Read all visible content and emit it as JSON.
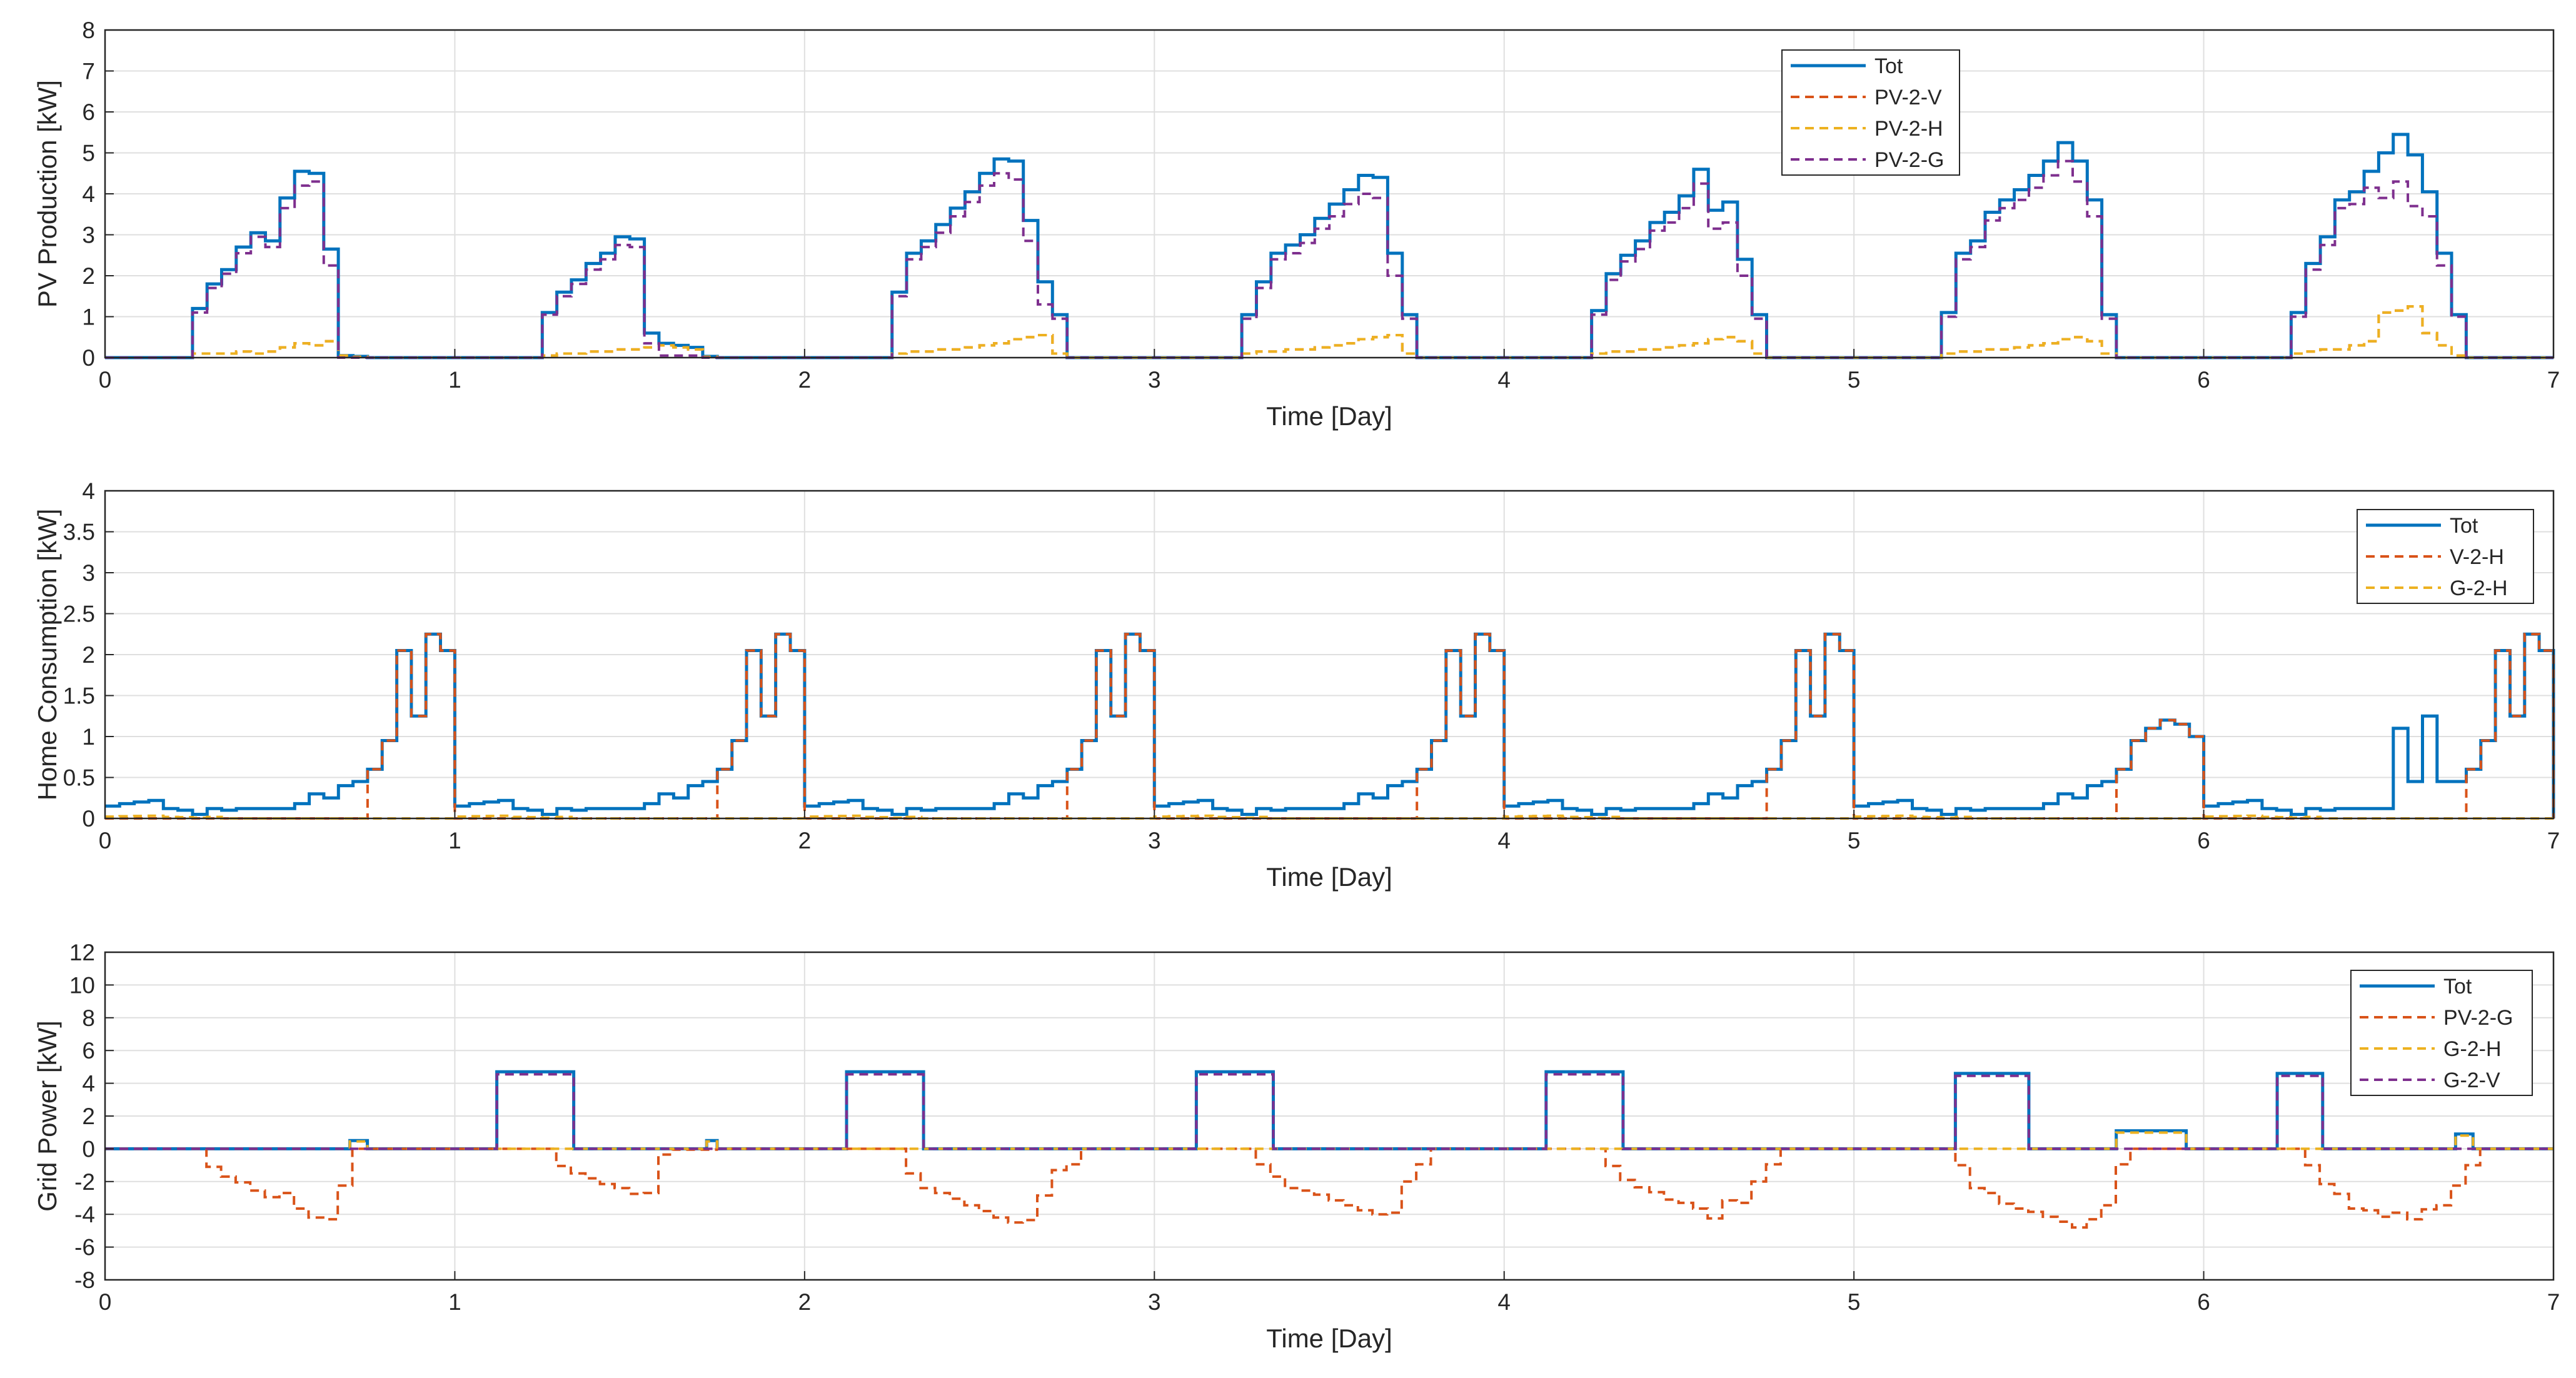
{
  "colors": {
    "tot": "#0072BD",
    "orange": "#D95319",
    "yellow": "#EDB120",
    "purple": "#7E2F8E",
    "grid": "#DFDFDF",
    "axis": "#262626"
  },
  "chart_data": [
    {
      "type": "line",
      "xlabel": "Time [Day]",
      "ylabel": "PV Production [kW]",
      "xlim": [
        0,
        7
      ],
      "ylim": [
        0,
        8
      ],
      "xticks": [
        0,
        1,
        2,
        3,
        4,
        5,
        6,
        7
      ],
      "yticks": [
        0,
        1,
        2,
        3,
        4,
        5,
        6,
        7,
        8
      ],
      "grid": true,
      "legend_position": "top-right",
      "x_step_day": 0.0417,
      "series": [
        {
          "name": "Tot",
          "color_key": "tot",
          "dash": "solid",
          "days": [
            [
              1.2,
              1.8,
              2.15,
              2.7,
              3.05,
              2.85,
              3.9,
              4.55,
              4.5,
              2.65,
              0.05,
              0.03
            ],
            [
              1.1,
              1.6,
              1.9,
              2.3,
              2.55,
              2.95,
              2.9,
              0.6,
              0.35,
              0.3,
              0.25,
              0.03
            ],
            [
              1.6,
              2.55,
              2.85,
              3.25,
              3.65,
              4.05,
              4.5,
              4.85,
              4.8,
              3.35,
              1.85,
              1.05
            ],
            [
              1.05,
              1.85,
              2.55,
              2.75,
              3.0,
              3.4,
              3.75,
              4.1,
              4.45,
              4.4,
              2.55,
              1.05
            ],
            [
              1.15,
              2.05,
              2.5,
              2.85,
              3.3,
              3.55,
              3.95,
              4.6,
              3.6,
              3.8,
              2.4,
              1.05
            ],
            [
              1.1,
              2.55,
              2.85,
              3.55,
              3.85,
              4.1,
              4.45,
              4.8,
              5.25,
              4.8,
              3.85,
              1.05
            ],
            [
              1.1,
              2.3,
              2.95,
              3.85,
              4.05,
              4.55,
              5.0,
              5.45,
              4.95,
              4.05,
              2.55,
              1.05
            ]
          ]
        },
        {
          "name": "PV-2-V",
          "color_key": "orange",
          "dash": "dashed",
          "days": [
            [
              0.1,
              0.1,
              0.1,
              0.15,
              0.1,
              0.15,
              0.25,
              0.35,
              0.3,
              0.4,
              0.05,
              0.02
            ],
            [
              0.05,
              0.1,
              0.1,
              0.15,
              0.15,
              0.2,
              0.2,
              0.25,
              0.3,
              0.25,
              0.2,
              0.02
            ],
            [
              0.1,
              0.15,
              0.15,
              0.2,
              0.2,
              0.25,
              0.3,
              0.35,
              0.45,
              0.5,
              0.55,
              0.1
            ],
            [
              0.1,
              0.15,
              0.15,
              0.2,
              0.2,
              0.25,
              0.3,
              0.35,
              0.45,
              0.5,
              0.55,
              0.1
            ],
            [
              0.1,
              0.15,
              0.15,
              0.2,
              0.2,
              0.25,
              0.3,
              0.35,
              0.45,
              0.5,
              0.4,
              0.1
            ],
            [
              0.1,
              0.15,
              0.15,
              0.2,
              0.2,
              0.25,
              0.3,
              0.35,
              0.45,
              0.5,
              0.4,
              0.1
            ],
            [
              0.1,
              0.15,
              0.2,
              0.2,
              0.3,
              0.4,
              1.1,
              1.15,
              1.25,
              0.6,
              0.3,
              0.05
            ]
          ]
        },
        {
          "name": "PV-2-H",
          "color_key": "yellow",
          "dash": "dashed",
          "days": [
            [
              0.1,
              0.1,
              0.1,
              0.15,
              0.1,
              0.15,
              0.25,
              0.35,
              0.3,
              0.4,
              0.05,
              0.02
            ],
            [
              0.05,
              0.1,
              0.1,
              0.15,
              0.15,
              0.2,
              0.2,
              0.25,
              0.3,
              0.25,
              0.2,
              0.02
            ],
            [
              0.1,
              0.15,
              0.15,
              0.2,
              0.2,
              0.25,
              0.3,
              0.35,
              0.45,
              0.5,
              0.55,
              0.1
            ],
            [
              0.1,
              0.15,
              0.15,
              0.2,
              0.2,
              0.25,
              0.3,
              0.35,
              0.45,
              0.5,
              0.55,
              0.1
            ],
            [
              0.1,
              0.15,
              0.15,
              0.2,
              0.2,
              0.25,
              0.3,
              0.35,
              0.45,
              0.5,
              0.4,
              0.1
            ],
            [
              0.1,
              0.15,
              0.15,
              0.2,
              0.2,
              0.25,
              0.3,
              0.35,
              0.45,
              0.5,
              0.4,
              0.1
            ],
            [
              0.1,
              0.15,
              0.2,
              0.2,
              0.3,
              0.4,
              1.1,
              1.15,
              1.25,
              0.6,
              0.3,
              0.05
            ]
          ]
        },
        {
          "name": "PV-2-G",
          "color_key": "purple",
          "dash": "dashed",
          "days": [
            [
              1.1,
              1.7,
              2.05,
              2.55,
              2.95,
              2.7,
              3.65,
              4.2,
              4.3,
              2.25,
              0.0,
              0.0
            ],
            [
              1.05,
              1.5,
              1.8,
              2.15,
              2.4,
              2.75,
              2.7,
              0.35,
              0.05,
              0.05,
              0.05,
              0.0
            ],
            [
              1.5,
              2.4,
              2.7,
              3.05,
              3.45,
              3.8,
              4.2,
              4.5,
              4.35,
              2.85,
              1.3,
              0.95
            ],
            [
              0.95,
              1.7,
              2.4,
              2.55,
              2.8,
              3.15,
              3.45,
              3.75,
              4.0,
              3.9,
              2.0,
              0.95
            ],
            [
              1.05,
              1.9,
              2.35,
              2.65,
              3.1,
              3.3,
              3.65,
              4.25,
              3.15,
              3.3,
              2.0,
              0.95
            ],
            [
              1.0,
              2.4,
              2.7,
              3.35,
              3.65,
              3.85,
              4.15,
              4.45,
              4.8,
              4.3,
              3.45,
              0.95
            ],
            [
              1.0,
              2.15,
              2.75,
              3.65,
              3.75,
              4.15,
              3.9,
              4.3,
              3.7,
              3.45,
              2.25,
              1.0
            ]
          ]
        }
      ],
      "legend": [
        "Tot",
        "PV-2-V",
        "PV-2-H",
        "PV-2-G"
      ]
    },
    {
      "type": "line",
      "xlabel": "Time [Day]",
      "ylabel": "Home Consumption [kW]",
      "xlim": [
        0,
        7
      ],
      "ylim": [
        0,
        4
      ],
      "xticks": [
        0,
        1,
        2,
        3,
        4,
        5,
        6,
        7
      ],
      "yticks": [
        0,
        0.5,
        1,
        1.5,
        2,
        2.5,
        3,
        3.5,
        4
      ],
      "grid": true,
      "legend_position": "top-right",
      "x_step_day": 0.0417,
      "series": [
        {
          "name": "Tot",
          "color_key": "tot",
          "dash": "solid",
          "base_day": [
            0.15,
            0.18,
            0.2,
            0.22,
            0.12,
            0.1,
            0.05,
            0.12,
            0.1,
            0.12,
            0.12,
            0.12,
            0.12,
            0.18,
            0.3,
            0.25,
            0.4,
            0.45,
            0.6,
            0.95,
            2.05,
            1.25,
            2.25,
            2.05
          ],
          "days_override": {
            "5": [
              0.15,
              0.18,
              0.2,
              0.22,
              0.12,
              0.1,
              0.05,
              0.12,
              0.1,
              0.12,
              0.12,
              0.12,
              0.12,
              0.18,
              0.3,
              0.25,
              0.4,
              0.45,
              0.6,
              0.95,
              1.1,
              1.2,
              1.15,
              1.0
            ],
            "6": [
              0.15,
              0.18,
              0.2,
              0.22,
              0.12,
              0.1,
              0.05,
              0.12,
              0.1,
              0.12,
              0.12,
              0.12,
              0.12,
              1.1,
              0.45,
              1.25,
              0.45,
              0.45,
              0.6,
              0.95,
              2.05,
              1.25,
              2.25,
              2.05
            ]
          }
        },
        {
          "name": "V-2-H",
          "color_key": "orange",
          "dash": "dashed",
          "note": "equals Tot during evening peak hours, otherwise ~0"
        },
        {
          "name": "G-2-H",
          "color_key": "yellow",
          "dash": "dashed",
          "note": "equals Tot outside evening peak, otherwise ~0"
        }
      ],
      "legend": [
        "Tot",
        "V-2-H",
        "G-2-H"
      ]
    },
    {
      "type": "line",
      "xlabel": "Time [Day]",
      "ylabel": "Grid Power [kW]",
      "xlim": [
        0,
        7
      ],
      "ylim": [
        -8,
        12
      ],
      "xticks": [
        0,
        1,
        2,
        3,
        4,
        5,
        6,
        7
      ],
      "yticks": [
        -8,
        -6,
        -4,
        -2,
        0,
        2,
        4,
        6,
        8,
        10,
        12
      ],
      "grid": true,
      "legend_position": "top-right",
      "x_step_day": 0.0417,
      "series": [
        {
          "name": "Tot",
          "color_key": "tot",
          "dash": "solid",
          "blocks": [
            [
              1.12,
              1.34,
              4.7
            ],
            [
              2.12,
              2.34,
              4.7
            ],
            [
              3.12,
              3.34,
              4.7
            ],
            [
              4.12,
              4.34,
              4.7
            ],
            [
              5.29,
              5.5,
              4.6
            ],
            [
              6.21,
              6.34,
              4.6
            ]
          ],
          "evening": [
            [
              0.7,
              0.75,
              0.5
            ],
            [
              1.72,
              1.75,
              0.5
            ],
            [
              5.75,
              5.95,
              1.1
            ],
            [
              6.72,
              6.77,
              0.9
            ]
          ]
        },
        {
          "name": "PV-2-G",
          "color_key": "orange",
          "dash": "dashed",
          "days": [
            [
              -1.1,
              -1.7,
              -2.05,
              -2.55,
              -2.95,
              -2.7,
              -3.65,
              -4.2,
              -4.3,
              -2.25,
              0.0,
              0.0
            ],
            [
              -1.05,
              -1.5,
              -1.8,
              -2.15,
              -2.4,
              -2.75,
              -2.7,
              -0.35,
              -0.05,
              -0.05,
              -0.05,
              0.0
            ],
            [
              -1.5,
              -2.4,
              -2.7,
              -3.05,
              -3.45,
              -3.8,
              -4.2,
              -4.5,
              -4.35,
              -2.85,
              -1.3,
              -0.95
            ],
            [
              -0.95,
              -1.7,
              -2.4,
              -2.55,
              -2.8,
              -3.15,
              -3.45,
              -3.75,
              -4.0,
              -3.9,
              -2.0,
              -0.95
            ],
            [
              -1.05,
              -1.9,
              -2.35,
              -2.65,
              -3.1,
              -3.3,
              -3.65,
              -4.25,
              -3.15,
              -3.3,
              -2.0,
              -0.95
            ],
            [
              -1.0,
              -2.4,
              -2.7,
              -3.35,
              -3.65,
              -3.85,
              -4.15,
              -4.45,
              -4.8,
              -4.3,
              -3.45,
              -0.95
            ],
            [
              -1.0,
              -2.15,
              -2.75,
              -3.65,
              -3.75,
              -4.15,
              -3.9,
              -4.3,
              -3.7,
              -3.45,
              -2.25,
              -1.0
            ]
          ]
        },
        {
          "name": "G-2-H",
          "color_key": "yellow",
          "dash": "dashed",
          "note": "small evening bumps only"
        },
        {
          "name": "G-2-V",
          "color_key": "purple",
          "dash": "dashed",
          "note": "equals Tot charging blocks"
        }
      ],
      "legend": [
        "Tot",
        "PV-2-G",
        "G-2-H",
        "G-2-V"
      ]
    }
  ]
}
